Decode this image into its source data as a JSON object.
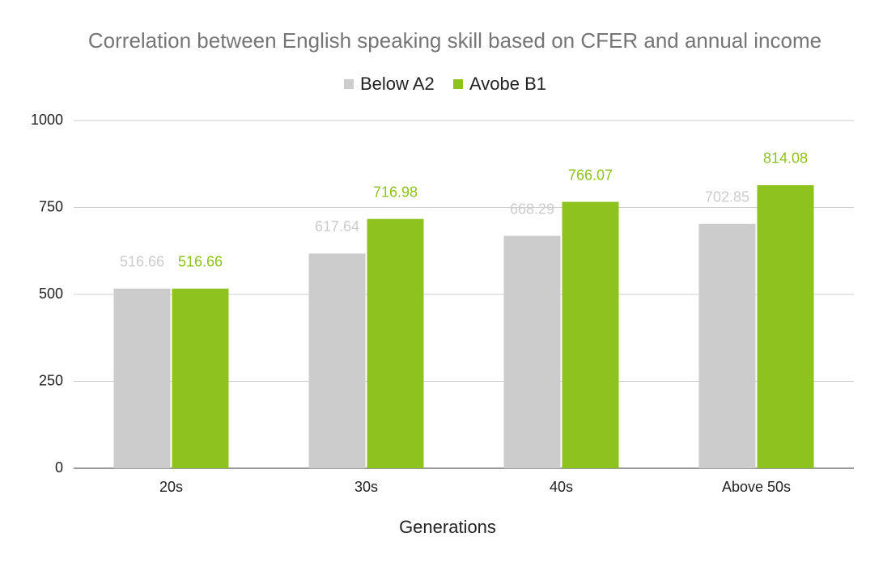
{
  "chart_data": {
    "type": "bar",
    "title": "Correlation between English speaking skill based on CFER and annual income",
    "x_label": "Generations",
    "categories": [
      "20s",
      "30s",
      "40s",
      "Above 50s"
    ],
    "series": [
      {
        "name": "Below A2",
        "color": "#cccccc",
        "values": [
          516.66,
          617.64,
          668.29,
          702.85
        ]
      },
      {
        "name": "Avobe B1",
        "color": "#8dc21f",
        "values": [
          516.66,
          716.98,
          766.07,
          814.08
        ]
      }
    ],
    "ylim": [
      0,
      1000
    ],
    "yticks": [
      0,
      250,
      500,
      750,
      1000
    ],
    "grid": true,
    "legend": "top"
  }
}
